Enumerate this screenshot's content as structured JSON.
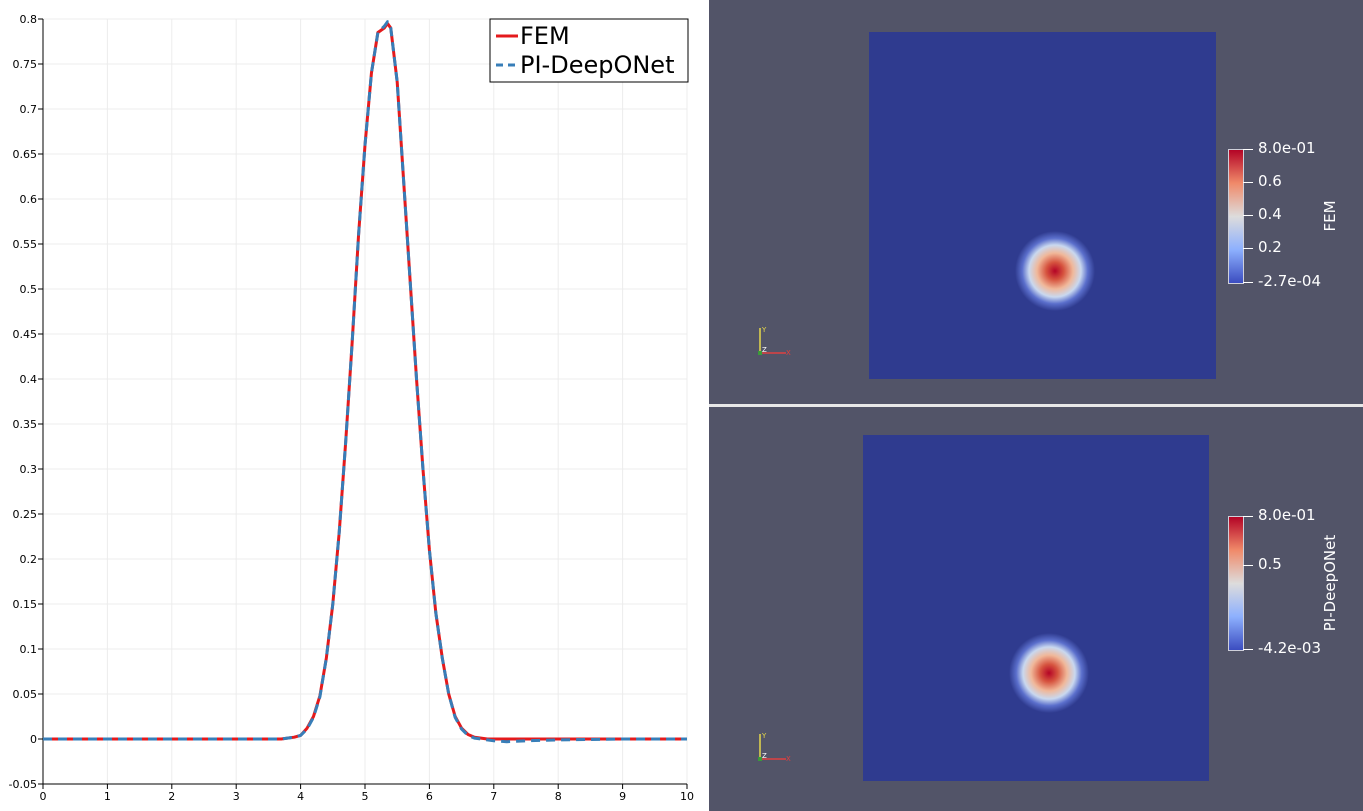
{
  "chart_data": [
    {
      "type": "line",
      "xlim": [
        0,
        10
      ],
      "ylim": [
        -0.05,
        0.8
      ],
      "x_ticks": [
        "0",
        "1",
        "2",
        "3",
        "4",
        "5",
        "6",
        "7",
        "8",
        "9",
        "10"
      ],
      "y_ticks": [
        "-0.05",
        "0",
        "0.05",
        "0.1",
        "0.15",
        "0.2",
        "0.25",
        "0.3",
        "0.35",
        "0.4",
        "0.45",
        "0.5",
        "0.55",
        "0.6",
        "0.65",
        "0.7",
        "0.75",
        "0.8"
      ],
      "y_tick_values": [
        -0.05,
        0,
        0.05,
        0.1,
        0.15,
        0.2,
        0.25,
        0.3,
        0.35,
        0.4,
        0.45,
        0.5,
        0.55,
        0.6,
        0.65,
        0.7,
        0.75,
        0.8
      ],
      "grid": true,
      "legend_position": "top-right",
      "series": [
        {
          "name": "FEM",
          "color": "#e41a1c",
          "style": "solid",
          "x": [
            0,
            1,
            2,
            3,
            3.7,
            3.9,
            4.0,
            4.1,
            4.2,
            4.3,
            4.4,
            4.5,
            4.6,
            4.7,
            4.8,
            4.9,
            5.0,
            5.1,
            5.2,
            5.3,
            5.35,
            5.4,
            5.5,
            5.6,
            5.7,
            5.8,
            5.9,
            6.0,
            6.1,
            6.2,
            6.3,
            6.4,
            6.5,
            6.6,
            6.7,
            6.8,
            6.9,
            7.0,
            7.2,
            8,
            9,
            10
          ],
          "y": [
            0,
            0,
            0,
            0,
            0,
            0.002,
            0.004,
            0.012,
            0.025,
            0.048,
            0.09,
            0.15,
            0.23,
            0.33,
            0.44,
            0.56,
            0.66,
            0.74,
            0.785,
            0.79,
            0.795,
            0.79,
            0.73,
            0.62,
            0.51,
            0.4,
            0.3,
            0.21,
            0.14,
            0.09,
            0.05,
            0.025,
            0.012,
            0.005,
            0.002,
            0.001,
            0,
            0,
            0,
            0,
            0,
            0
          ]
        },
        {
          "name": "PI-DeepONet",
          "color": "#377eb8",
          "style": "dashed",
          "x": [
            0,
            1,
            2,
            3,
            3.7,
            3.9,
            4.0,
            4.1,
            4.2,
            4.3,
            4.4,
            4.5,
            4.6,
            4.7,
            4.8,
            4.9,
            5.0,
            5.1,
            5.2,
            5.3,
            5.35,
            5.4,
            5.5,
            5.6,
            5.7,
            5.8,
            5.9,
            6.0,
            6.1,
            6.2,
            6.3,
            6.4,
            6.5,
            6.6,
            6.7,
            6.8,
            6.9,
            7.0,
            7.2,
            7.5,
            8,
            9,
            10
          ],
          "y": [
            0,
            0,
            0,
            0,
            0,
            0.002,
            0.004,
            0.011,
            0.024,
            0.047,
            0.09,
            0.15,
            0.23,
            0.33,
            0.44,
            0.56,
            0.66,
            0.74,
            0.785,
            0.792,
            0.797,
            0.79,
            0.73,
            0.62,
            0.51,
            0.4,
            0.3,
            0.21,
            0.14,
            0.09,
            0.05,
            0.024,
            0.011,
            0.004,
            0.001,
            0,
            -0.001,
            -0.002,
            -0.003,
            -0.002,
            -0.001,
            0,
            0
          ]
        }
      ]
    },
    {
      "type": "heatmap",
      "variable": "FEM",
      "colorbar": {
        "max_label": "8.0e-01",
        "min_label": "-2.7e-04",
        "ticks": [
          "0.6",
          "0.4",
          "0.2"
        ],
        "tick_values": [
          0.6,
          0.4,
          0.2
        ],
        "min": -0.00027,
        "max": 0.8
      },
      "peak_value": 0.8,
      "axes_labels": [
        "Y",
        "Z",
        "X"
      ]
    },
    {
      "type": "heatmap",
      "variable": "PI-DeepONet",
      "colorbar": {
        "max_label": "8.0e-01",
        "min_label": "-4.2e-03",
        "ticks": [
          "0.5"
        ],
        "tick_values": [
          0.5
        ],
        "min": -0.0042,
        "max": 0.8
      },
      "peak_value": 0.8,
      "axes_labels": [
        "Y",
        "Z",
        "X"
      ]
    }
  ]
}
